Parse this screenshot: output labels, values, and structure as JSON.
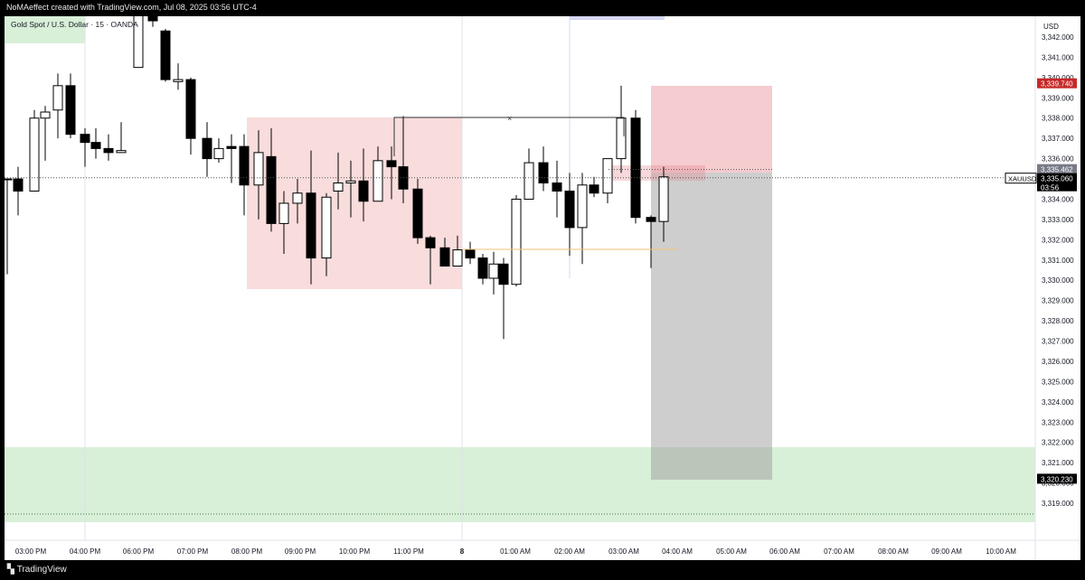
{
  "header": {
    "text": "NoMAeffect created with TradingView.com, Jul 08, 2025 03:56 UTC-4"
  },
  "chart": {
    "label": "Gold Spot / U.S. Dollar · 15 · OANDA"
  },
  "footer": {
    "brand": "TradingView",
    "logo_icon": "tradingview-logo-icon"
  },
  "axis": {
    "currency": "USD",
    "price_labels": [
      "3,342.000",
      "3,341.000",
      "3,340.000",
      "3,339.000",
      "3,338.000",
      "3,337.000",
      "3,336.000",
      "3,335.000",
      "3,334.000",
      "3,333.000",
      "3,332.000",
      "3,331.000",
      "3,330.000",
      "3,329.000",
      "3,328.000",
      "3,327.000",
      "3,326.000",
      "3,325.000",
      "3,324.000",
      "3,323.000",
      "3,322.000",
      "3,321.000",
      "3,320.000",
      "3,319.000"
    ],
    "time_labels": [
      "03:00 PM",
      "04:00 PM",
      "06:00 PM",
      "07:00 PM",
      "08:00 PM",
      "09:00 PM",
      "10:00 PM",
      "11:00 PM",
      "8",
      "01:00 AM",
      "02:00 AM",
      "03:00 AM",
      "04:00 AM",
      "05:00 AM",
      "06:00 AM",
      "07:00 AM",
      "08:00 AM",
      "09:00 AM",
      "10:00 AM"
    ]
  },
  "badges": {
    "stop": "3,339.740",
    "entry": "3,335.462",
    "symbol": "XAUUSD",
    "current_price": "3,335.060",
    "countdown": "03:56",
    "target": "3,320.230"
  },
  "colors": {
    "up_body": "#ffffff",
    "down_body": "#000000",
    "red_zone": "#f8d6d6",
    "green_zone": "#d8efd8",
    "badge_red": "#c62828",
    "badge_gray": "#787b86",
    "badge_black": "#000000"
  },
  "chart_data": {
    "type": "candlestick",
    "symbol": "XAUUSD",
    "interval": "15",
    "ylim": [
      3318.4,
      3343.2
    ],
    "candles": [
      {
        "time": "02:45 PM",
        "o": 3335.0,
        "h": 3335.0,
        "l": 3330.3,
        "c": 3335.0,
        "dir": "up"
      },
      {
        "time": "03:00 PM",
        "o": 3335.0,
        "h": 3335.6,
        "l": 3333.2,
        "c": 3334.4,
        "dir": "down"
      },
      {
        "time": "03:15 PM",
        "o": 3334.4,
        "h": 3338.4,
        "l": 3334.4,
        "c": 3338.0,
        "dir": "up"
      },
      {
        "time": "03:30 PM",
        "o": 3338.0,
        "h": 3338.6,
        "l": 3335.9,
        "c": 3338.3,
        "dir": "up"
      },
      {
        "time": "03:45 PM",
        "o": 3338.4,
        "h": 3340.2,
        "l": 3337.0,
        "c": 3339.6,
        "dir": "up"
      },
      {
        "time": "04:00 PM",
        "o": 3339.6,
        "h": 3340.2,
        "l": 3337.0,
        "c": 3337.2,
        "dir": "down"
      },
      {
        "time": "04:15 PM",
        "o": 3337.2,
        "h": 3337.5,
        "l": 3335.6,
        "c": 3336.8,
        "dir": "down"
      },
      {
        "time": "04:30 PM",
        "o": 3336.8,
        "h": 3337.5,
        "l": 3336.0,
        "c": 3336.5,
        "dir": "down"
      },
      {
        "time": "04:45 PM",
        "o": 3336.5,
        "h": 3337.2,
        "l": 3335.9,
        "c": 3336.3,
        "dir": "down"
      },
      {
        "time": "05:00 PM",
        "o": 3336.3,
        "h": 3337.8,
        "l": 3336.3,
        "c": 3336.4,
        "dir": "up"
      },
      {
        "time": "06:00 PM",
        "o": 3340.5,
        "h": 3343.8,
        "l": 3340.5,
        "c": 3343.5,
        "dir": "up"
      },
      {
        "time": "06:15 PM",
        "o": 3343.5,
        "h": 3343.8,
        "l": 3342.5,
        "c": 3342.8,
        "dir": "down"
      },
      {
        "time": "06:30 PM",
        "o": 3342.3,
        "h": 3342.4,
        "l": 3339.8,
        "c": 3339.9,
        "dir": "down"
      },
      {
        "time": "06:45 PM",
        "o": 3339.8,
        "h": 3340.7,
        "l": 3339.4,
        "c": 3339.9,
        "dir": "up"
      },
      {
        "time": "07:00 PM",
        "o": 3339.9,
        "h": 3340.0,
        "l": 3336.2,
        "c": 3337.0,
        "dir": "down"
      },
      {
        "time": "07:15 PM",
        "o": 3337.0,
        "h": 3337.8,
        "l": 3335.1,
        "c": 3336.0,
        "dir": "down"
      },
      {
        "time": "07:30 PM",
        "o": 3336.0,
        "h": 3337.0,
        "l": 3335.8,
        "c": 3336.5,
        "dir": "up"
      },
      {
        "time": "07:45 PM",
        "o": 3336.5,
        "h": 3337.2,
        "l": 3334.8,
        "c": 3336.6,
        "dir": "down"
      },
      {
        "time": "08:00 PM",
        "o": 3336.6,
        "h": 3337.2,
        "l": 3333.2,
        "c": 3334.7,
        "dir": "down"
      },
      {
        "time": "08:15 PM",
        "o": 3334.7,
        "h": 3337.4,
        "l": 3333.0,
        "c": 3336.3,
        "dir": "up"
      },
      {
        "time": "08:30 PM",
        "o": 3336.1,
        "h": 3337.5,
        "l": 3332.4,
        "c": 3332.8,
        "dir": "down"
      },
      {
        "time": "08:45 PM",
        "o": 3332.8,
        "h": 3334.4,
        "l": 3331.3,
        "c": 3333.8,
        "dir": "up"
      },
      {
        "time": "09:00 PM",
        "o": 3333.8,
        "h": 3335.0,
        "l": 3332.8,
        "c": 3334.3,
        "dir": "up"
      },
      {
        "time": "09:15 PM",
        "o": 3334.3,
        "h": 3336.4,
        "l": 3329.8,
        "c": 3331.1,
        "dir": "down"
      },
      {
        "time": "09:30 PM",
        "o": 3331.1,
        "h": 3334.3,
        "l": 3330.2,
        "c": 3334.1,
        "dir": "up"
      },
      {
        "time": "09:45 PM",
        "o": 3334.4,
        "h": 3336.3,
        "l": 3333.5,
        "c": 3334.8,
        "dir": "up"
      },
      {
        "time": "10:00 PM",
        "o": 3334.8,
        "h": 3335.9,
        "l": 3333.1,
        "c": 3334.9,
        "dir": "up"
      },
      {
        "time": "10:15 PM",
        "o": 3334.9,
        "h": 3336.5,
        "l": 3332.9,
        "c": 3333.9,
        "dir": "down"
      },
      {
        "time": "10:30 PM",
        "o": 3333.9,
        "h": 3336.6,
        "l": 3333.9,
        "c": 3335.9,
        "dir": "up"
      },
      {
        "time": "10:45 PM",
        "o": 3335.9,
        "h": 3336.6,
        "l": 3334.0,
        "c": 3335.6,
        "dir": "down"
      },
      {
        "time": "11:00 PM",
        "o": 3335.6,
        "h": 3338.1,
        "l": 3333.8,
        "c": 3334.5,
        "dir": "down"
      },
      {
        "time": "11:15 PM",
        "o": 3334.5,
        "h": 3335.0,
        "l": 3331.8,
        "c": 3332.1,
        "dir": "down"
      },
      {
        "time": "11:30 PM",
        "o": 3332.1,
        "h": 3332.2,
        "l": 3329.8,
        "c": 3331.6,
        "dir": "down"
      },
      {
        "time": "11:45 PM",
        "o": 3331.6,
        "h": 3332.1,
        "l": 3330.8,
        "c": 3330.7,
        "dir": "down"
      },
      {
        "time": "12:00 AM",
        "o": 3330.7,
        "h": 3332.2,
        "l": 3330.7,
        "c": 3331.5,
        "dir": "up"
      },
      {
        "time": "12:15 AM",
        "o": 3331.5,
        "h": 3331.9,
        "l": 3330.8,
        "c": 3331.1,
        "dir": "down"
      },
      {
        "time": "12:30 AM",
        "o": 3331.1,
        "h": 3331.3,
        "l": 3329.8,
        "c": 3330.1,
        "dir": "down"
      },
      {
        "time": "12:45 AM",
        "o": 3330.1,
        "h": 3331.4,
        "l": 3329.3,
        "c": 3330.8,
        "dir": "up"
      },
      {
        "time": "01:00 AM",
        "o": 3330.8,
        "h": 3331.1,
        "l": 3327.1,
        "c": 3329.8,
        "dir": "down"
      },
      {
        "time": "01:15 AM",
        "o": 3329.8,
        "h": 3334.2,
        "l": 3329.7,
        "c": 3334.0,
        "dir": "up"
      },
      {
        "time": "01:30 AM",
        "o": 3334.0,
        "h": 3336.5,
        "l": 3334.0,
        "c": 3335.8,
        "dir": "up"
      },
      {
        "time": "01:45 AM",
        "o": 3335.8,
        "h": 3336.6,
        "l": 3334.4,
        "c": 3334.8,
        "dir": "down"
      },
      {
        "time": "02:00 AM",
        "o": 3334.8,
        "h": 3335.9,
        "l": 3333.1,
        "c": 3334.4,
        "dir": "down"
      },
      {
        "time": "02:15 AM",
        "o": 3334.4,
        "h": 3335.3,
        "l": 3331.2,
        "c": 3332.6,
        "dir": "down"
      },
      {
        "time": "02:30 AM",
        "o": 3332.6,
        "h": 3335.3,
        "l": 3330.8,
        "c": 3334.7,
        "dir": "up"
      },
      {
        "time": "02:45 AM",
        "o": 3334.7,
        "h": 3335.1,
        "l": 3334.1,
        "c": 3334.3,
        "dir": "down"
      },
      {
        "time": "03:00 AM",
        "o": 3334.3,
        "h": 3336.0,
        "l": 3333.8,
        "c": 3336.0,
        "dir": "up"
      },
      {
        "time": "03:15 AM",
        "o": 3336.0,
        "h": 3339.6,
        "l": 3335.3,
        "c": 3338.0,
        "dir": "up"
      },
      {
        "time": "03:30 AM",
        "o": 3338.0,
        "h": 3338.4,
        "l": 3332.8,
        "c": 3333.1,
        "dir": "down"
      },
      {
        "time": "03:45 AM",
        "o": 3333.1,
        "h": 3333.2,
        "l": 3330.6,
        "c": 3332.9,
        "dir": "down"
      },
      {
        "time": "04:00 AM",
        "o": 3332.9,
        "h": 3335.6,
        "l": 3331.9,
        "c": 3335.1,
        "dir": "up"
      }
    ],
    "price_lines": {
      "current": 3335.06,
      "entry": 3335.462,
      "stop": 3339.74,
      "target": 3320.23
    },
    "grid": false
  }
}
